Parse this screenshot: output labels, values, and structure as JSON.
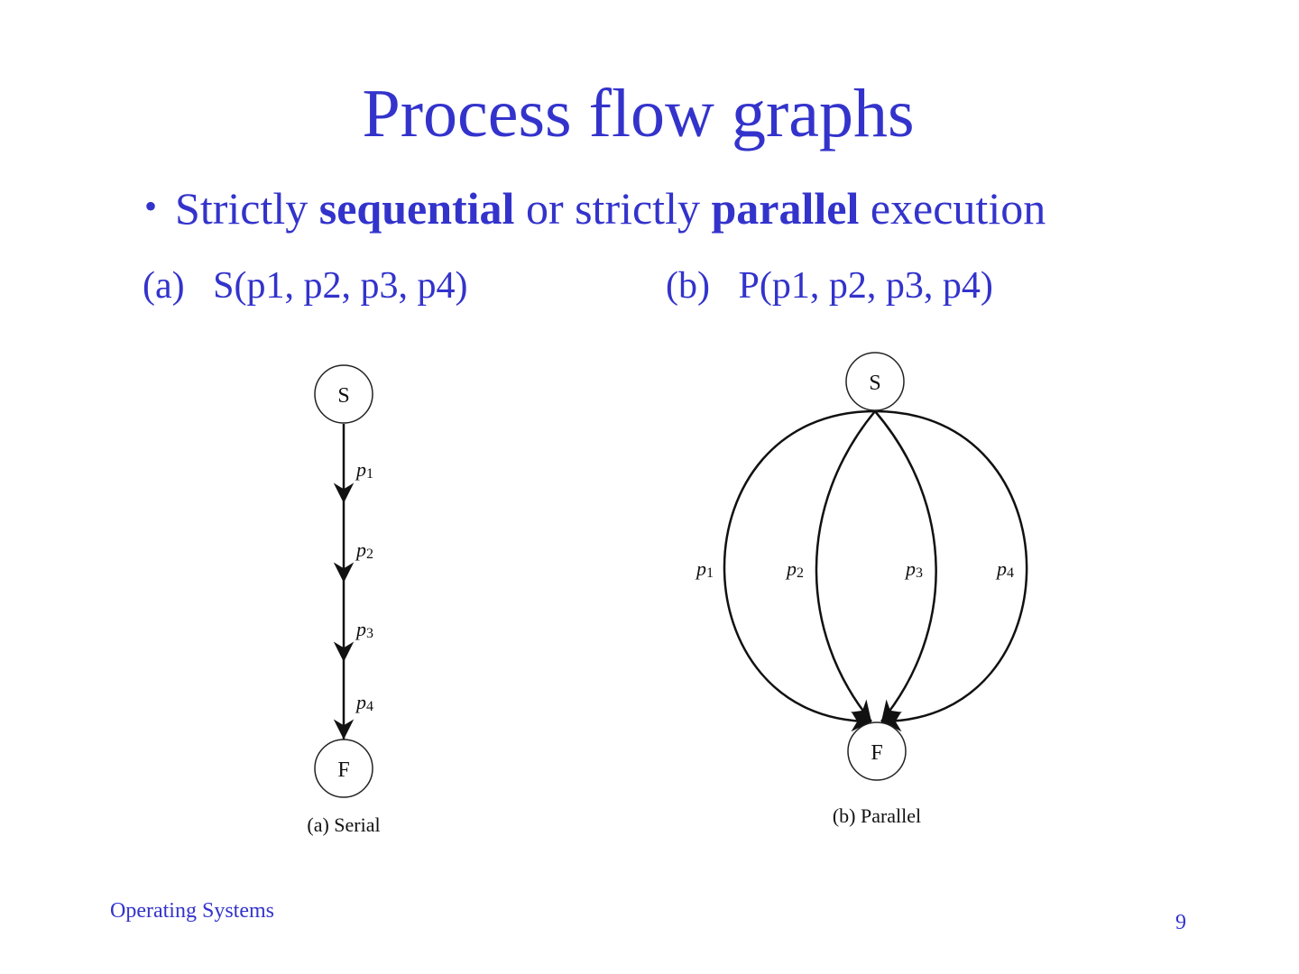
{
  "slide": {
    "title": "Process flow graphs",
    "bullet": {
      "pre": "Strictly ",
      "bold1": "sequential",
      "mid": " or strictly ",
      "bold2": "parallel",
      "post": " execution"
    },
    "label_a": "(a)   S(p1, p2, p3, p4)",
    "label_b": "(b)   P(p1, p2, p3, p4)",
    "footer": "Operating Systems",
    "page_number": "9",
    "accent_color": "#3333cc"
  },
  "diagram_serial": {
    "start": "S",
    "finish": "F",
    "edges": [
      {
        "p": "p",
        "sub": "1"
      },
      {
        "p": "p",
        "sub": "2"
      },
      {
        "p": "p",
        "sub": "3"
      },
      {
        "p": "p",
        "sub": "4"
      }
    ],
    "caption": "(a) Serial"
  },
  "diagram_parallel": {
    "start": "S",
    "finish": "F",
    "edges": [
      {
        "p": "p",
        "sub": "1"
      },
      {
        "p": "p",
        "sub": "2"
      },
      {
        "p": "p",
        "sub": "3"
      },
      {
        "p": "p",
        "sub": "4"
      }
    ],
    "caption": "(b) Parallel"
  }
}
